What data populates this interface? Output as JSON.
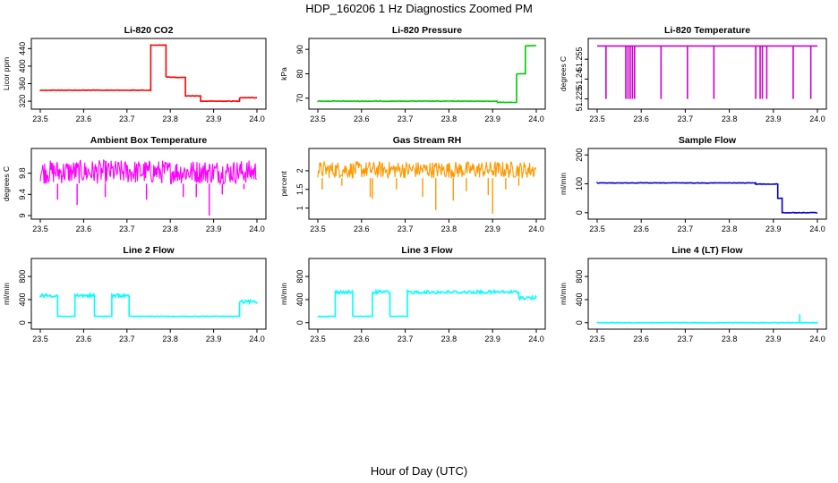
{
  "figure": {
    "title": "HDP_160206  1 Hz Diagnostics Zoomed PM",
    "xlabel": "Hour of Day (UTC)"
  },
  "colors": {
    "red": "#ff0000",
    "green": "#00cc00",
    "magenta": "#ff00ff",
    "orange": "#ff9900",
    "blue": "#0000cc",
    "cyan": "#00ffff"
  },
  "chart_data": [
    {
      "type": "line",
      "title": "Li-820 CO2",
      "ylabel": "Licor ppm",
      "color": "#ff0000",
      "xlim": [
        23.5,
        24.0
      ],
      "ylim": [
        310,
        455
      ],
      "xticks": [
        "23.5",
        "23.6",
        "23.7",
        "23.8",
        "23.9",
        "24.0"
      ],
      "yticks": [
        320,
        360,
        400,
        440
      ],
      "series": [
        {
          "name": "CO2",
          "segments": [
            {
              "x0": 23.5,
              "x1": 23.755,
              "y": 345
            },
            {
              "x0": 23.755,
              "x1": 23.79,
              "y": 448
            },
            {
              "x0": 23.79,
              "x1": 23.81,
              "y": 375
            },
            {
              "x0": 23.81,
              "x1": 23.835,
              "y": 374
            },
            {
              "x0": 23.835,
              "x1": 23.87,
              "y": 332
            },
            {
              "x0": 23.87,
              "x1": 23.96,
              "y": 320
            },
            {
              "x0": 23.96,
              "x1": 24.0,
              "y": 328
            }
          ]
        }
      ]
    },
    {
      "type": "line",
      "title": "Li-820 Pressure",
      "ylabel": "kPa",
      "color": "#00cc00",
      "xlim": [
        23.5,
        24.0
      ],
      "ylim": [
        67,
        93
      ],
      "xticks": [
        "23.5",
        "23.6",
        "23.7",
        "23.8",
        "23.9",
        "24.0"
      ],
      "yticks": [
        70,
        80,
        90
      ],
      "series": [
        {
          "name": "Pressure",
          "segments": [
            {
              "x0": 23.5,
              "x1": 23.91,
              "y": 68.8
            },
            {
              "x0": 23.91,
              "x1": 23.955,
              "y": 68.3
            },
            {
              "x0": 23.955,
              "x1": 23.975,
              "y": 80
            },
            {
              "x0": 23.975,
              "x1": 24.0,
              "y": 91.5
            }
          ]
        }
      ]
    },
    {
      "type": "line",
      "title": "Li-820 Temperature",
      "ylabel": "degrees C",
      "color": "#cc00cc",
      "xlim": [
        23.5,
        24.0
      ],
      "ylim": [
        51.22,
        51.268
      ],
      "xticks": [
        "23.5",
        "23.6",
        "23.7",
        "23.8",
        "23.9",
        "24.0"
      ],
      "yticks": [
        51.225,
        51.24,
        51.255
      ],
      "baseline": 51.265,
      "dip_to": 51.225,
      "series": [
        {
          "name": "Temperature",
          "dips_at": [
            23.52,
            23.565,
            23.57,
            23.575,
            23.58,
            23.585,
            23.645,
            23.705,
            23.765,
            23.86,
            23.87,
            23.875,
            23.885,
            23.945,
            23.985
          ]
        }
      ]
    },
    {
      "type": "line",
      "title": "Ambient Box Temperature",
      "ylabel": "degrees C",
      "color": "#ff00ff",
      "xlim": [
        23.5,
        24.0
      ],
      "ylim": [
        9.0,
        10.2
      ],
      "xticks": [
        "23.5",
        "23.6",
        "23.7",
        "23.8",
        "23.9",
        "24.0"
      ],
      "yticks": [
        9.0,
        9.4,
        9.8
      ],
      "band": [
        9.6,
        10.05
      ],
      "series": [
        {
          "name": "Ambient",
          "dips": [
            [
              23.54,
              9.3
            ],
            [
              23.585,
              9.2
            ],
            [
              23.65,
              9.35
            ],
            [
              23.745,
              9.3
            ],
            [
              23.83,
              9.35
            ],
            [
              23.86,
              9.35
            ],
            [
              23.89,
              9.0
            ],
            [
              23.92,
              9.4
            ],
            [
              23.97,
              9.5
            ]
          ]
        }
      ]
    },
    {
      "type": "line",
      "title": "Gas Stream RH",
      "ylabel": "percent",
      "color": "#ff9900",
      "xlim": [
        23.5,
        24.0
      ],
      "ylim": [
        0.8,
        2.5
      ],
      "xticks": [
        "23.5",
        "23.6",
        "23.7",
        "23.8",
        "23.9",
        "24.0"
      ],
      "yticks": [
        1.0,
        1.5,
        2.0
      ],
      "band": [
        1.8,
        2.25
      ],
      "series": [
        {
          "name": "RH",
          "dips": [
            [
              23.51,
              1.5
            ],
            [
              23.555,
              1.6
            ],
            [
              23.62,
              1.3
            ],
            [
              23.625,
              1.25
            ],
            [
              23.68,
              1.5
            ],
            [
              23.74,
              1.3
            ],
            [
              23.77,
              0.95
            ],
            [
              23.81,
              1.2
            ],
            [
              23.84,
              1.45
            ],
            [
              23.89,
              1.35
            ],
            [
              23.9,
              0.85
            ],
            [
              23.93,
              1.5
            ],
            [
              23.96,
              1.6
            ]
          ]
        }
      ]
    },
    {
      "type": "line",
      "title": "Sample Flow",
      "ylabel": "ml/min",
      "color": "#0000cc",
      "xlim": [
        23.5,
        24.0
      ],
      "ylim": [
        -10,
        210
      ],
      "xticks": [
        "23.5",
        "23.6",
        "23.7",
        "23.8",
        "23.9",
        "24.0"
      ],
      "yticks": [
        0,
        100,
        200
      ],
      "series": [
        {
          "name": "Sample",
          "segments": [
            {
              "x0": 23.5,
              "x1": 23.86,
              "y": 103
            },
            {
              "x0": 23.86,
              "x1": 23.91,
              "y": 99
            },
            {
              "x0": 23.91,
              "x1": 23.92,
              "y": 50
            },
            {
              "x0": 23.92,
              "x1": 24.0,
              "y": 0
            }
          ]
        }
      ]
    },
    {
      "type": "line",
      "title": "Line 2 Flow",
      "ylabel": "ml/min",
      "color": "#00ffff",
      "xlim": [
        23.5,
        24.0
      ],
      "ylim": [
        -50,
        1050
      ],
      "xticks": [
        "23.5",
        "23.6",
        "23.7",
        "23.8",
        "23.9",
        "24.0"
      ],
      "yticks": [
        0,
        400,
        800
      ],
      "series": [
        {
          "name": "Line2",
          "segments": [
            {
              "x0": 23.5,
              "x1": 23.54,
              "y": 470
            },
            {
              "x0": 23.54,
              "x1": 23.58,
              "y": 110
            },
            {
              "x0": 23.58,
              "x1": 23.625,
              "y": 470
            },
            {
              "x0": 23.625,
              "x1": 23.665,
              "y": 110
            },
            {
              "x0": 23.665,
              "x1": 23.705,
              "y": 470
            },
            {
              "x0": 23.705,
              "x1": 23.96,
              "y": 110
            },
            {
              "x0": 23.96,
              "x1": 24.0,
              "y": 360
            }
          ]
        }
      ]
    },
    {
      "type": "line",
      "title": "Line 3 Flow",
      "ylabel": "ml/min",
      "color": "#00ffff",
      "xlim": [
        23.5,
        24.0
      ],
      "ylim": [
        -50,
        1050
      ],
      "xticks": [
        "23.5",
        "23.6",
        "23.7",
        "23.8",
        "23.9",
        "24.0"
      ],
      "yticks": [
        0,
        400,
        800
      ],
      "series": [
        {
          "name": "Line3",
          "segments": [
            {
              "x0": 23.5,
              "x1": 23.54,
              "y": 110
            },
            {
              "x0": 23.54,
              "x1": 23.58,
              "y": 530
            },
            {
              "x0": 23.58,
              "x1": 23.625,
              "y": 110
            },
            {
              "x0": 23.625,
              "x1": 23.665,
              "y": 530
            },
            {
              "x0": 23.665,
              "x1": 23.705,
              "y": 110
            },
            {
              "x0": 23.705,
              "x1": 23.96,
              "y": 530
            },
            {
              "x0": 23.96,
              "x1": 24.0,
              "y": 430
            }
          ]
        }
      ]
    },
    {
      "type": "line",
      "title": "Line 4 (LT) Flow",
      "ylabel": "ml/min",
      "color": "#00ffff",
      "xlim": [
        23.5,
        24.0
      ],
      "ylim": [
        -50,
        1050
      ],
      "xticks": [
        "23.5",
        "23.6",
        "23.7",
        "23.8",
        "23.9",
        "24.0"
      ],
      "yticks": [
        0,
        400,
        800
      ],
      "series": [
        {
          "name": "Line4",
          "segments": [
            {
              "x0": 23.5,
              "x1": 24.0,
              "y": 0
            }
          ],
          "spike": [
            23.96,
            150
          ]
        }
      ]
    }
  ]
}
